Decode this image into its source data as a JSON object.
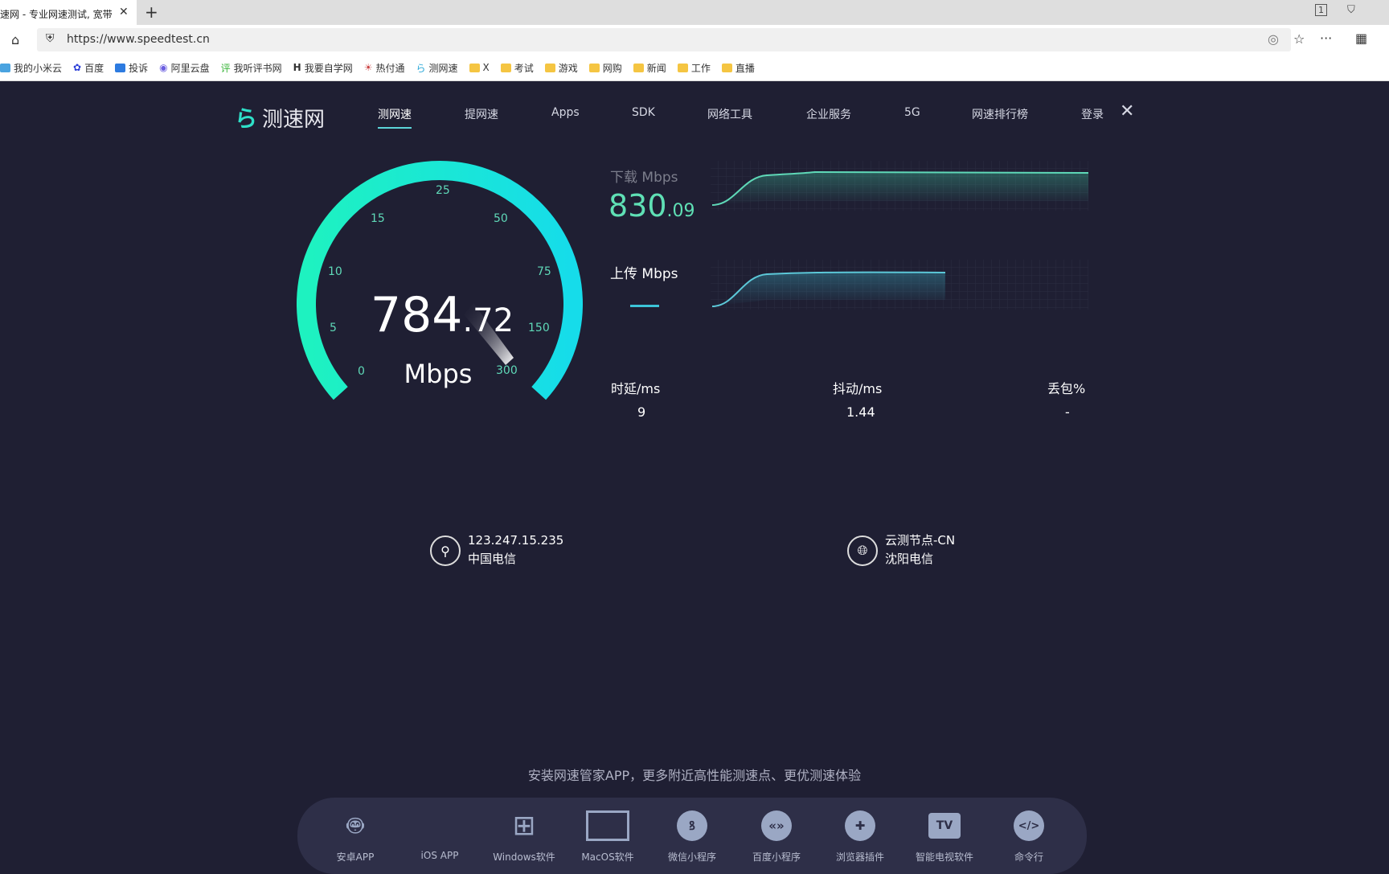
{
  "browser": {
    "tab_title": "速网 - 专业网速测试, 宽带",
    "tab_close": "✕",
    "new_tab": "+",
    "url": "https://www.speedtest.cn",
    "bookmarks": [
      "我的小米云",
      "百度",
      "投诉",
      "阿里云盘",
      "我听评书网",
      "我要自学网",
      "热付通",
      "测网速",
      "X",
      "考试",
      "游戏",
      "网购",
      "新闻",
      "工作",
      "直播"
    ],
    "window_badge": "1"
  },
  "nav": {
    "logo": "测速网",
    "items": [
      "测网速",
      "提网速",
      "Apps",
      "SDK",
      "网络工具",
      "企业服务",
      "5G",
      "网速排行榜"
    ],
    "login": "登录",
    "close": "✕"
  },
  "gauge": {
    "value_int": "784",
    "value_dec": ".72",
    "unit": "Mbps",
    "ticks": [
      "0",
      "5",
      "10",
      "15",
      "25",
      "50",
      "75",
      "150",
      "300"
    ],
    "colors": {
      "start": "#1ef2c0",
      "end": "#16dcea"
    }
  },
  "download": {
    "label": "下载 Mbps",
    "value_int": "830",
    "value_dec": ".09",
    "color": "#5fe0b5"
  },
  "upload": {
    "label": "上传 Mbps",
    "value": "—",
    "color": "#3cc4d8"
  },
  "stats": [
    {
      "label": "时延/ms",
      "value": "9"
    },
    {
      "label": "抖动/ms",
      "value": "1.44"
    },
    {
      "label": "丢包%",
      "value": "-"
    }
  ],
  "client": {
    "ip": "123.247.15.235",
    "isp": "中国电信"
  },
  "server": {
    "name": "云测节点-CN",
    "isp": "沈阳电信"
  },
  "promo": "安装网速管家APP，更多附近高性能测速点、更优测速体验",
  "apps": [
    "安卓APP",
    "iOS APP",
    "Windows软件",
    "MacOS软件",
    "微信小程序",
    "百度小程序",
    "浏览器插件",
    "智能电视软件",
    "命令行"
  ]
}
